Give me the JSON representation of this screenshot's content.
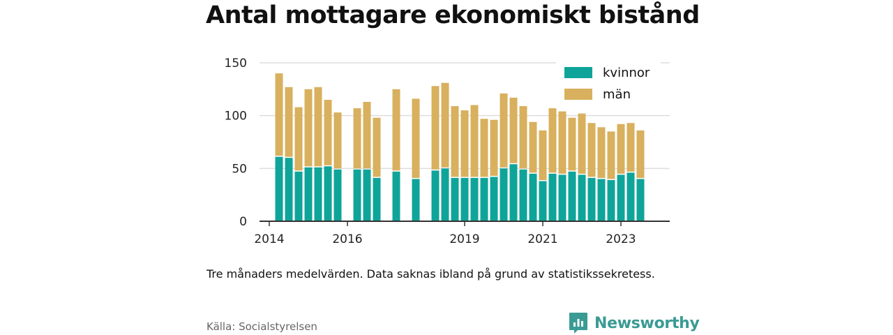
{
  "title": "Antal mottagare ekonomiskt bistånd",
  "note": "Tre månaders medelvärden. Data saknas ibland på grund av statistikssekretess.",
  "source": "Källa: Socialstyrelsen",
  "brand": "Newsworthy",
  "colors": {
    "kvinnor": "#0fa499",
    "man": "#d8b05e",
    "axis": "#333333",
    "grid": "#dddddd",
    "brand": "#3a9b94"
  },
  "chart_data": {
    "type": "bar",
    "stacked": true,
    "title": "Antal mottagare ekonomiskt bistånd",
    "xlabel": "",
    "ylabel": "",
    "ylim": [
      0,
      150
    ],
    "yticks": [
      0,
      50,
      100,
      150
    ],
    "xticks": [
      {
        "label": "2014",
        "x": 2014.0
      },
      {
        "label": "2016",
        "x": 2016.0
      },
      {
        "label": "2019",
        "x": 2019.0
      },
      {
        "label": "2021",
        "x": 2021.0
      },
      {
        "label": "2023",
        "x": 2023.0
      }
    ],
    "xlim": [
      2013.75,
      2024.25
    ],
    "grid": true,
    "legend_position": "top-right",
    "series": [
      {
        "name": "kvinnor",
        "color": "#0fa499"
      },
      {
        "name": "män",
        "color": "#d8b05e"
      }
    ],
    "x": [
      2014.25,
      2014.5,
      2014.75,
      2015.0,
      2015.25,
      2015.5,
      2015.75,
      2016.25,
      2016.5,
      2016.75,
      2017.25,
      2017.75,
      2018.25,
      2018.5,
      2018.75,
      2019.0,
      2019.25,
      2019.5,
      2019.75,
      2020.0,
      2020.25,
      2020.5,
      2020.75,
      2021.0,
      2021.25,
      2021.5,
      2021.75,
      2022.0,
      2022.25,
      2022.5,
      2022.75,
      2023.0,
      2023.25,
      2023.5
    ],
    "kvinnor": [
      61,
      60,
      47,
      51,
      51,
      52,
      49,
      49,
      49,
      41,
      47,
      40,
      48,
      50,
      41,
      41,
      41,
      41,
      42,
      50,
      54,
      49,
      45,
      38,
      45,
      44,
      47,
      44,
      41,
      40,
      39,
      44,
      46,
      40
    ],
    "man": [
      79,
      67,
      61,
      74,
      76,
      63,
      54,
      58,
      64,
      57,
      78,
      76,
      80,
      81,
      68,
      64,
      69,
      56,
      54,
      71,
      63,
      60,
      49,
      48,
      62,
      60,
      51,
      58,
      52,
      49,
      46,
      48,
      47,
      46
    ]
  }
}
